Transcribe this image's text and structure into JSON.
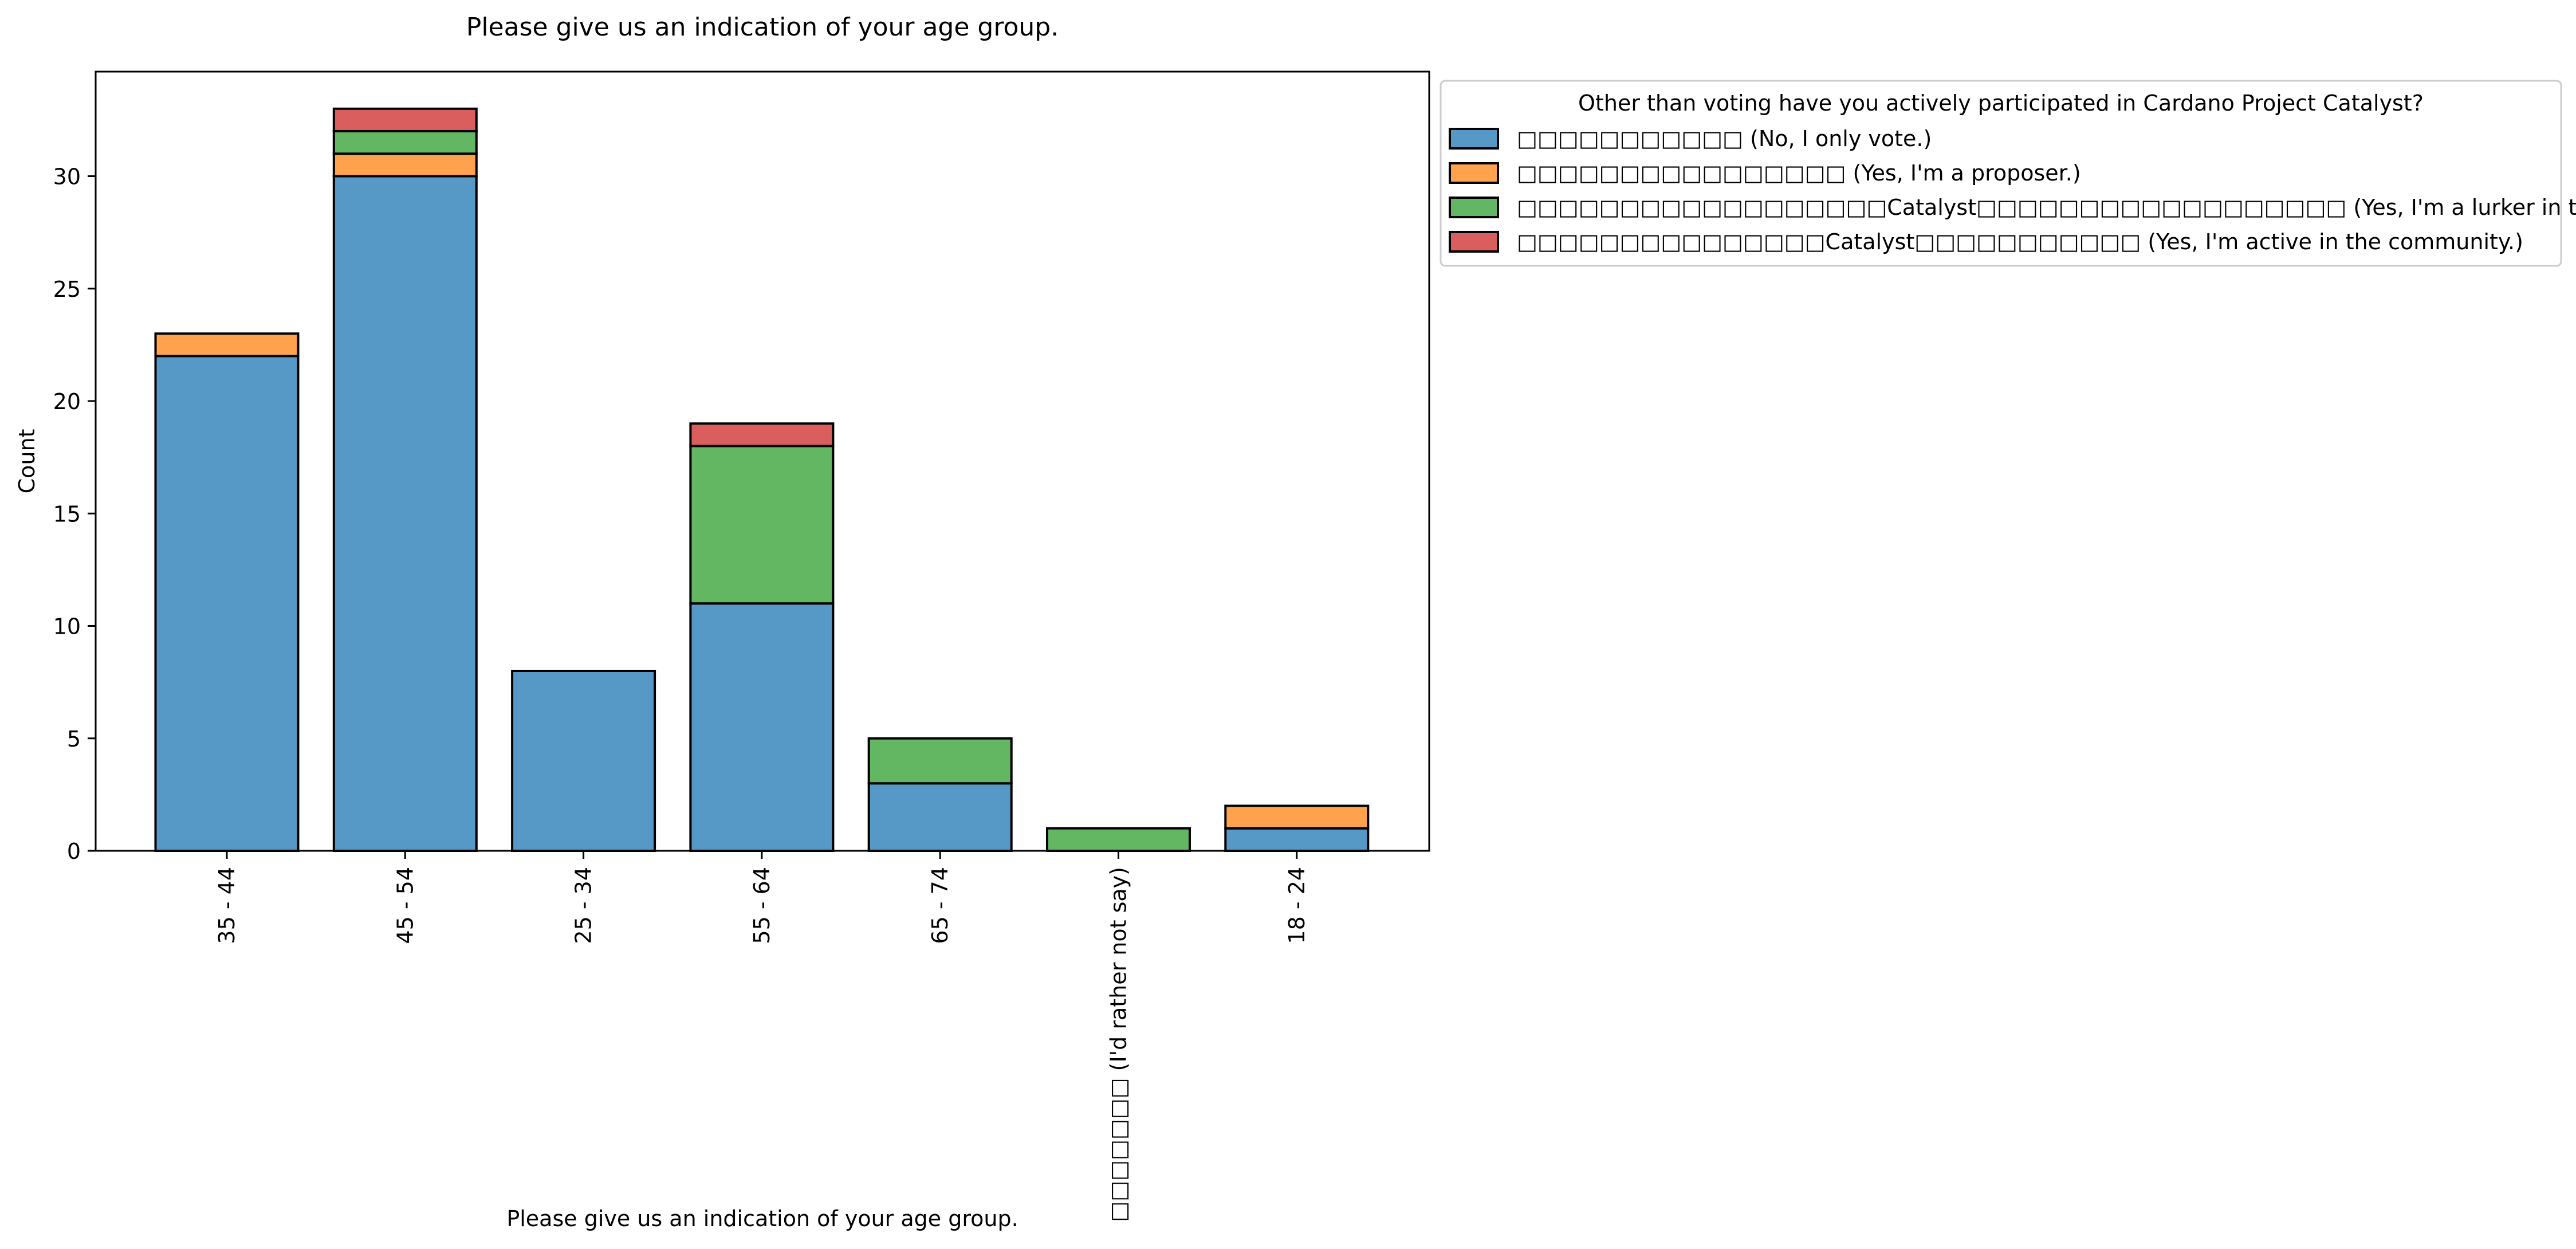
{
  "chart_data": {
    "type": "bar",
    "stacked": true,
    "title": "Please give us an indication of your age group.",
    "xlabel": "Please give us an indication of your age group.",
    "ylabel": "Count",
    "ylim": [
      0,
      34.65
    ],
    "yticks": [
      0,
      5,
      10,
      15,
      20,
      25,
      30
    ],
    "grid": false,
    "legend_position": "outside-right-top",
    "legend_title": "Other than voting have you actively participated in Cardano Project Catalyst?",
    "categories": [
      "35 - 44",
      "45 - 54",
      "25 - 34",
      "55 - 64",
      "65 - 74",
      "□□□□□□□ (I'd rather not say)",
      "18 - 24"
    ],
    "series": [
      {
        "name": "□□□□□□□□□□□ (No, I only vote.)",
        "color": "#5799c6",
        "values": [
          22,
          30,
          8,
          11,
          3,
          0,
          1
        ]
      },
      {
        "name": "□□□□□□□□□□□□□□□□ (Yes, I'm a proposer.)",
        "color": "#ffa24d",
        "values": [
          1,
          1,
          0,
          0,
          0,
          0,
          1
        ]
      },
      {
        "name": "□□□□□□□□□□□□□□□□□□Catalyst□□□□□□□□□□□□□□□□□□ (Yes, I'm a lurker in the community)",
        "color": "#63b762",
        "values": [
          0,
          1,
          0,
          7,
          2,
          1,
          0
        ]
      },
      {
        "name": "□□□□□□□□□□□□□□□Catalyst□□□□□□□□□□□ (Yes, I'm active in the community.)",
        "color": "#db5e5e",
        "values": [
          0,
          1,
          0,
          1,
          0,
          0,
          0
        ]
      }
    ]
  }
}
